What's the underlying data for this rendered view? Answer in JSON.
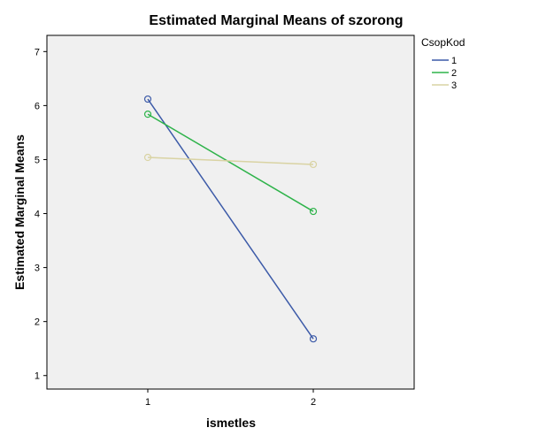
{
  "chart_data": {
    "type": "line",
    "title": "Estimated Marginal Means of szorong",
    "xlabel": "ismetles",
    "ylabel": "Estimated Marginal Means",
    "categories": [
      "1",
      "2"
    ],
    "ylim": [
      0.75,
      7.3
    ],
    "yticks": [
      "1",
      "2",
      "3",
      "4",
      "5",
      "6",
      "7"
    ],
    "grid": false,
    "plot_background": "#f0f0f0",
    "legend": {
      "title": "CsopKod",
      "position": "top-right outside"
    },
    "series": [
      {
        "name": "1",
        "values": [
          6.12,
          1.68
        ],
        "color": "#3c5aa8"
      },
      {
        "name": "2",
        "values": [
          5.84,
          4.04
        ],
        "color": "#2eb34a"
      },
      {
        "name": "3",
        "values": [
          5.04,
          4.91
        ],
        "color": "#d9d3a3"
      }
    ]
  }
}
